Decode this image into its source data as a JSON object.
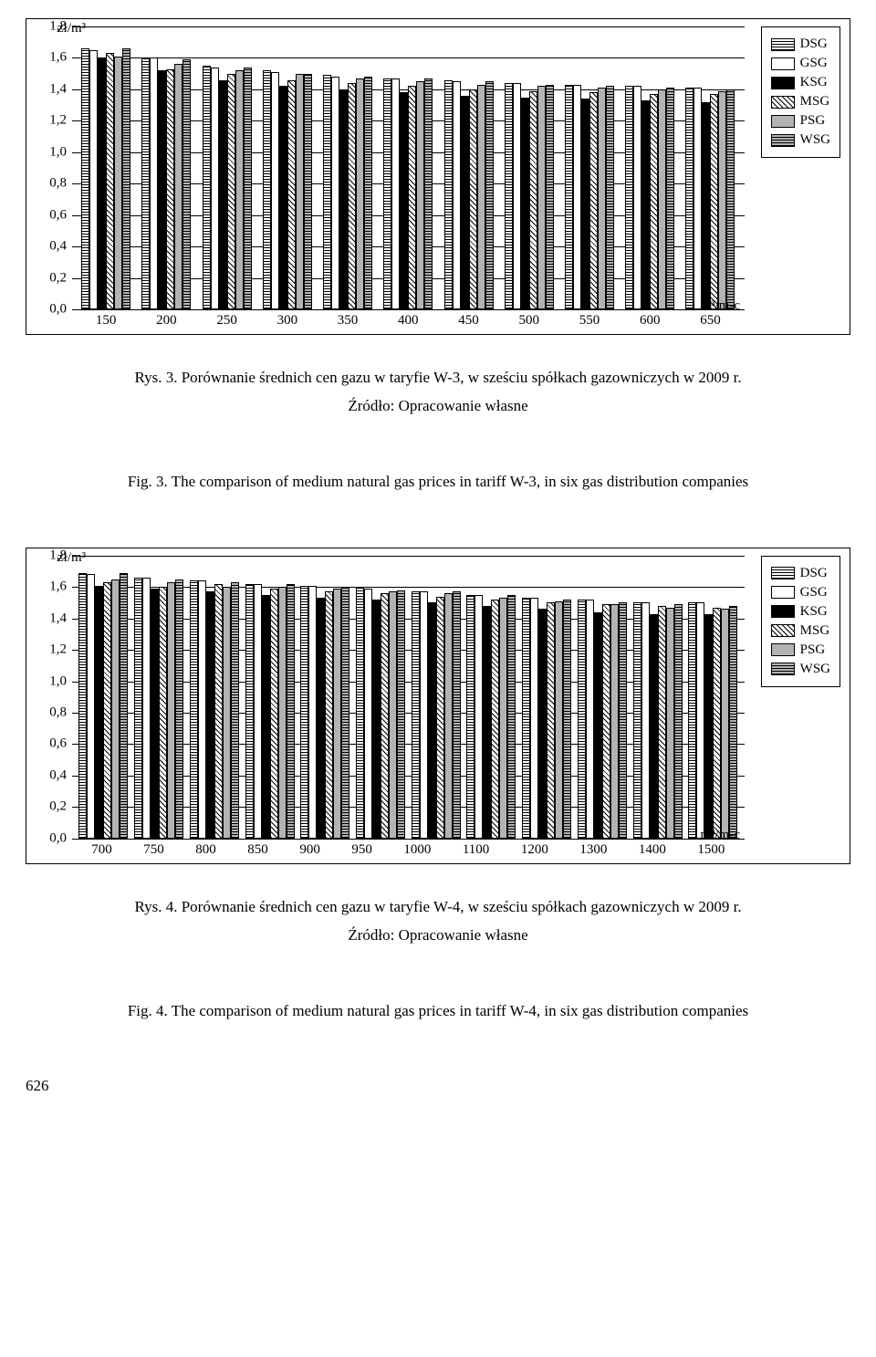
{
  "legend": {
    "items": [
      {
        "key": "DSG",
        "label": "DSG",
        "pattern": "hstripe",
        "fill": "#ffffff"
      },
      {
        "key": "GSG",
        "label": "GSG",
        "pattern": "solid",
        "fill": "#ffffff"
      },
      {
        "key": "KSG",
        "label": "KSG",
        "pattern": "solid",
        "fill": "#000000"
      },
      {
        "key": "MSG",
        "label": "MSG",
        "pattern": "diag",
        "fill": "#ffffff"
      },
      {
        "key": "PSG",
        "label": "PSG",
        "pattern": "solid",
        "fill": "#b3b3b3"
      },
      {
        "key": "WSG",
        "label": "WSG",
        "pattern": "hstripe",
        "fill": "#b3b3b3"
      }
    ]
  },
  "chart_w3": {
    "type": "bar",
    "ylabel": "zł/m³",
    "xlabel": "m³/m-c",
    "ylim": [
      0.0,
      1.8
    ],
    "ytick_step": 0.2,
    "background": "#ffffff",
    "grid_color": "#000000",
    "categories": [
      "150",
      "200",
      "250",
      "300",
      "350",
      "400",
      "450",
      "500",
      "550",
      "600",
      "650"
    ],
    "series_order": [
      "DSG",
      "GSG",
      "KSG",
      "MSG",
      "PSG",
      "WSG"
    ],
    "values": {
      "150": [
        1.66,
        1.65,
        1.6,
        1.63,
        1.61,
        1.66
      ],
      "200": [
        1.6,
        1.6,
        1.52,
        1.53,
        1.56,
        1.59
      ],
      "250": [
        1.55,
        1.54,
        1.46,
        1.5,
        1.52,
        1.54
      ],
      "300": [
        1.52,
        1.51,
        1.42,
        1.46,
        1.5,
        1.5
      ],
      "350": [
        1.49,
        1.48,
        1.4,
        1.44,
        1.47,
        1.48
      ],
      "400": [
        1.47,
        1.47,
        1.38,
        1.42,
        1.45,
        1.47
      ],
      "450": [
        1.46,
        1.45,
        1.36,
        1.4,
        1.43,
        1.45
      ],
      "500": [
        1.44,
        1.44,
        1.35,
        1.39,
        1.42,
        1.43
      ],
      "550": [
        1.43,
        1.43,
        1.34,
        1.38,
        1.41,
        1.42
      ],
      "600": [
        1.42,
        1.42,
        1.33,
        1.37,
        1.4,
        1.41
      ],
      "650": [
        1.41,
        1.41,
        1.32,
        1.37,
        1.39,
        1.4
      ]
    }
  },
  "chart_w4": {
    "type": "bar",
    "ylabel": "zł/m³",
    "xlabel": "m³/m-c",
    "ylim": [
      0.0,
      1.8
    ],
    "ytick_step": 0.2,
    "background": "#ffffff",
    "grid_color": "#000000",
    "categories": [
      "700",
      "750",
      "800",
      "850",
      "900",
      "950",
      "1000",
      "1100",
      "1200",
      "1300",
      "1400",
      "1500"
    ],
    "series_order": [
      "DSG",
      "GSG",
      "KSG",
      "MSG",
      "PSG",
      "WSG"
    ],
    "values": {
      "700": [
        1.69,
        1.68,
        1.61,
        1.63,
        1.65,
        1.69
      ],
      "750": [
        1.66,
        1.66,
        1.59,
        1.6,
        1.63,
        1.65
      ],
      "800": [
        1.64,
        1.64,
        1.57,
        1.62,
        1.6,
        1.63
      ],
      "850": [
        1.62,
        1.62,
        1.55,
        1.59,
        1.6,
        1.62
      ],
      "900": [
        1.61,
        1.61,
        1.53,
        1.57,
        1.59,
        1.6
      ],
      "950": [
        1.6,
        1.59,
        1.52,
        1.56,
        1.57,
        1.58
      ],
      "1000": [
        1.57,
        1.57,
        1.5,
        1.54,
        1.56,
        1.57
      ],
      "1100": [
        1.55,
        1.55,
        1.48,
        1.52,
        1.53,
        1.55
      ],
      "1200": [
        1.53,
        1.53,
        1.46,
        1.5,
        1.51,
        1.52
      ],
      "1300": [
        1.52,
        1.52,
        1.44,
        1.49,
        1.49,
        1.5
      ],
      "1400": [
        1.5,
        1.5,
        1.43,
        1.48,
        1.47,
        1.49
      ],
      "1500": [
        1.5,
        1.5,
        1.43,
        1.47,
        1.46,
        1.48
      ]
    }
  },
  "captions": {
    "rys3": "Rys. 3. Porównanie średnich cen gazu w taryfie W-3, w sześciu spółkach gazowniczych w 2009 r.",
    "src3": "Źródło: Opracowanie własne",
    "fig3": "Fig. 3. The comparison of medium natural gas prices in tariff W-3, in six gas distribution companies",
    "rys4": "Rys. 4. Porównanie średnich cen gazu w taryfie W-4, w sześciu spółkach gazowniczych w 2009 r.",
    "src4": "Źródło: Opracowanie własne",
    "fig4": "Fig. 4. The comparison of medium natural gas prices in tariff W-4, in six gas distribution companies"
  },
  "page_number": "626",
  "patterns": {
    "solid": {
      "css": ""
    },
    "hstripe": {
      "css": "repeating-linear-gradient(0deg,#000 0 1px,transparent 1px 3px)"
    },
    "diag": {
      "css": "repeating-linear-gradient(45deg,#000 0 1px,transparent 1px 4px)"
    }
  }
}
